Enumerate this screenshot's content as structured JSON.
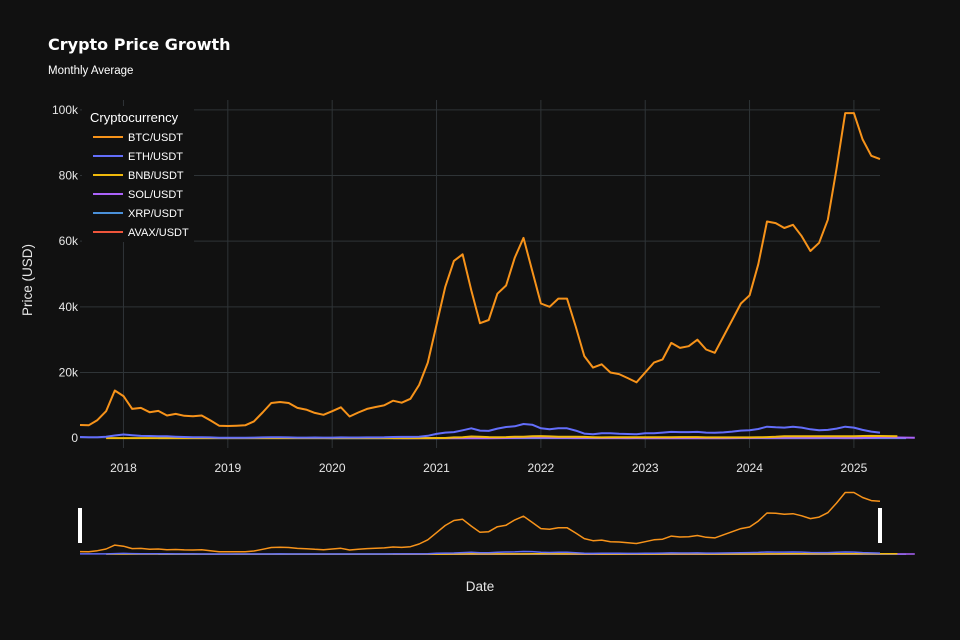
{
  "chart_data": {
    "type": "line",
    "title": "Crypto Price Growth",
    "subtitle": "Monthly Average",
    "xlabel": "Date",
    "ylabel": "Price (USD)",
    "x_range": [
      "2017-08",
      "2025-04"
    ],
    "ylim": [
      -3000,
      103000
    ],
    "y_ticks": [
      0,
      20000,
      40000,
      60000,
      80000,
      100000
    ],
    "y_tick_labels": [
      "0",
      "20k",
      "40k",
      "60k",
      "80k",
      "100k"
    ],
    "x_ticks": [
      "2018-01",
      "2019-01",
      "2020-01",
      "2021-01",
      "2022-01",
      "2023-01",
      "2024-01",
      "2025-01"
    ],
    "x_tick_labels": [
      "2018",
      "2019",
      "2020",
      "2021",
      "2022",
      "2023",
      "2024",
      "2025"
    ],
    "grid": true,
    "legend_title": "Cryptocurrency",
    "legend_position": "top-left",
    "range_slider": true,
    "series": [
      {
        "name": "BTC/USDT",
        "color": "#F7931A",
        "start": "2017-08",
        "values": [
          4000,
          3900,
          5500,
          8200,
          14500,
          12800,
          8900,
          9200,
          7900,
          8300,
          6900,
          7400,
          6800,
          6700,
          6900,
          5400,
          3800,
          3700,
          3800,
          3900,
          5100,
          7800,
          10700,
          11000,
          10700,
          9200,
          8700,
          7700,
          7100,
          8200,
          9400,
          6600,
          7800,
          8900,
          9500,
          10000,
          11400,
          10800,
          12000,
          16200,
          23000,
          34500,
          46000,
          54000,
          56000,
          45000,
          35000,
          36000,
          44000,
          46500,
          55000,
          61000,
          51000,
          41000,
          40000,
          42500,
          42500,
          34000,
          25000,
          21500,
          22500,
          20000,
          19500,
          18300,
          17000,
          20000,
          23000,
          24000,
          29000,
          27500,
          28000,
          30000,
          27000,
          26000,
          31000,
          36000,
          41000,
          43500,
          53000,
          66000,
          65500,
          64000,
          65000,
          61500,
          57000,
          59500,
          66500,
          82000,
          99000,
          99000,
          91000,
          86000,
          85000
        ]
      },
      {
        "name": "ETH/USDT",
        "color": "#636EFA",
        "start": "2017-08",
        "values": [
          350,
          300,
          300,
          400,
          800,
          1100,
          900,
          700,
          650,
          600,
          550,
          450,
          350,
          300,
          280,
          220,
          130,
          120,
          140,
          150,
          170,
          240,
          270,
          300,
          220,
          180,
          180,
          190,
          160,
          170,
          230,
          190,
          200,
          220,
          240,
          260,
          340,
          380,
          370,
          440,
          720,
          1300,
          1700,
          1850,
          2400,
          3000,
          2300,
          2200,
          2900,
          3400,
          3600,
          4300,
          4100,
          3000,
          2700,
          3000,
          3000,
          2300,
          1400,
          1200,
          1500,
          1500,
          1350,
          1250,
          1200,
          1500,
          1500,
          1700,
          1900,
          1850,
          1850,
          1900,
          1700,
          1650,
          1750,
          2000,
          2300,
          2400,
          2800,
          3500,
          3300,
          3200,
          3500,
          3200,
          2700,
          2400,
          2500,
          2900,
          3500,
          3200,
          2500,
          2000,
          1700
        ]
      },
      {
        "name": "BNB/USDT",
        "color": "#F0B90B",
        "start": "2017-11",
        "values": [
          2,
          2,
          10,
          10,
          12,
          11,
          12,
          15,
          14,
          10,
          9,
          11,
          10,
          6,
          6,
          10,
          14,
          20,
          23,
          32,
          29,
          26,
          21,
          19,
          15,
          16,
          14,
          16,
          16,
          12,
          15,
          17,
          17,
          17,
          26,
          30,
          26,
          29,
          38,
          40,
          230,
          260,
          500,
          420,
          320,
          300,
          330,
          420,
          450,
          560,
          620,
          530,
          410,
          400,
          420,
          390,
          300,
          240,
          250,
          280,
          300,
          280,
          290,
          270,
          290,
          300,
          320,
          310,
          310,
          240,
          220,
          240,
          220,
          220,
          230,
          260,
          320,
          410,
          570,
          580,
          590,
          600,
          590,
          560,
          560,
          590,
          600,
          650,
          700,
          670,
          630,
          600
        ]
      },
      {
        "name": "SOL/USDT",
        "color": "#AB63FA",
        "start": "2020-08",
        "values": [
          3,
          3,
          2,
          2,
          2,
          3,
          10,
          14,
          16,
          30,
          40,
          30,
          35,
          40,
          130,
          170,
          200,
          200,
          180,
          140,
          100,
          80,
          100,
          70,
          38,
          40,
          35,
          30,
          33,
          22,
          14,
          12,
          22,
          22,
          22,
          20,
          20,
          17,
          20,
          30,
          45,
          60,
          70,
          100,
          100,
          120,
          170,
          180,
          150,
          160,
          160,
          150,
          140,
          140,
          150,
          170,
          220,
          240,
          200,
          170,
          140
        ]
      },
      {
        "name": "XRP/USDT",
        "color": "#4A90D9",
        "start": "2018-05",
        "values": [
          0.6,
          0.5,
          0.4,
          0.4,
          0.3,
          0.5,
          0.5,
          0.4,
          0.3,
          0.3,
          0.3,
          0.3,
          0.3,
          0.4,
          0.4,
          0.4,
          0.3,
          0.3,
          0.3,
          0.3,
          0.2,
          0.2,
          0.2,
          0.2,
          0.2,
          0.2,
          0.2,
          0.2,
          0.2,
          0.2,
          0.3,
          0.3,
          0.2,
          0.3,
          0.5,
          0.5,
          0.3,
          0.5,
          1.3,
          1.3,
          0.7,
          0.7,
          0.9,
          0.9,
          1.2,
          1.1,
          1.0,
          0.8,
          0.7,
          0.8,
          0.7,
          0.5,
          0.4,
          0.4,
          0.4,
          0.3,
          0.4,
          0.4,
          0.4,
          0.4,
          0.4,
          0.4,
          0.4,
          0.4,
          0.5,
          0.5,
          0.5,
          0.7,
          0.6,
          0.5,
          0.5,
          0.6,
          0.6,
          0.6,
          0.6,
          0.5,
          0.5,
          0.5,
          0.5,
          0.6,
          0.5,
          1.2,
          2.3,
          2.5,
          2.6,
          2.4,
          2.1
        ]
      },
      {
        "name": "AVAX/USDT",
        "color": "#EF553B",
        "start": "2020-09",
        "values": [
          5,
          5,
          4,
          4,
          8,
          20,
          30,
          30,
          30,
          20,
          14,
          15,
          40,
          70,
          90,
          100,
          80,
          70,
          60,
          40,
          20,
          20,
          15,
          18,
          15,
          15,
          12,
          18,
          20,
          17,
          15,
          12,
          13,
          14,
          10,
          9,
          11,
          20,
          35,
          40,
          40,
          38,
          30,
          28,
          26,
          29,
          26,
          25,
          30,
          42,
          35,
          23,
          19,
          18
        ]
      }
    ]
  }
}
